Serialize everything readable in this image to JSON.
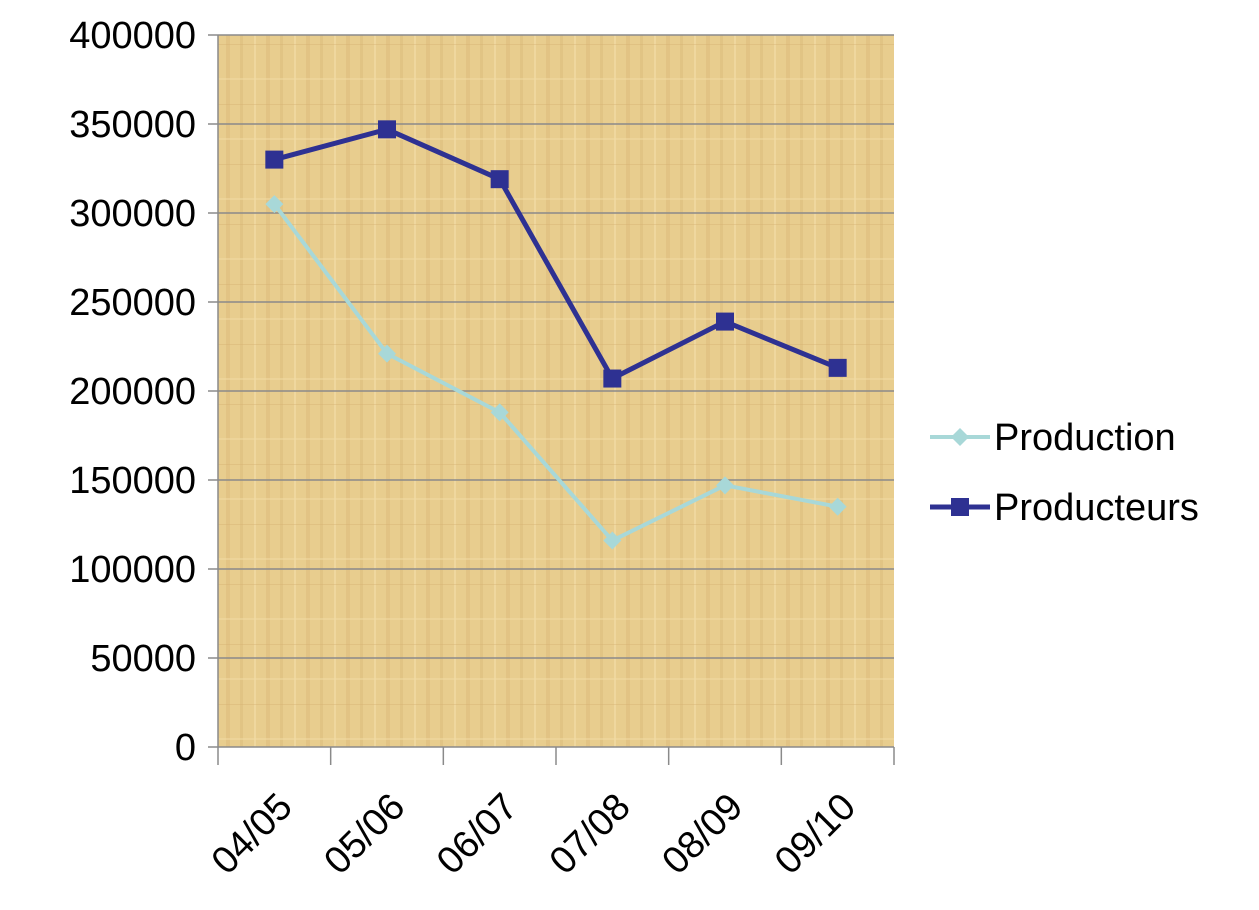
{
  "chart_data": {
    "type": "line",
    "categories": [
      "04/05",
      "05/06",
      "06/07",
      "07/08",
      "08/09",
      "09/10"
    ],
    "series": [
      {
        "name": "Production",
        "values": [
          305000,
          221000,
          188000,
          116000,
          147000,
          135000
        ],
        "color": "#a8d8d8",
        "marker": "diamond"
      },
      {
        "name": "Producteurs",
        "values": [
          330000,
          347000,
          319000,
          207000,
          239000,
          213000
        ],
        "color": "#2e3192",
        "marker": "square"
      }
    ],
    "ylim": [
      0,
      400000
    ],
    "yticks": [
      "0",
      "50000",
      "100000",
      "150000",
      "200000",
      "250000",
      "300000",
      "350000",
      "400000"
    ],
    "grid": true,
    "legend": "right",
    "plot_background": "#e9cf92",
    "gridline_color": "#8a8a8a"
  }
}
